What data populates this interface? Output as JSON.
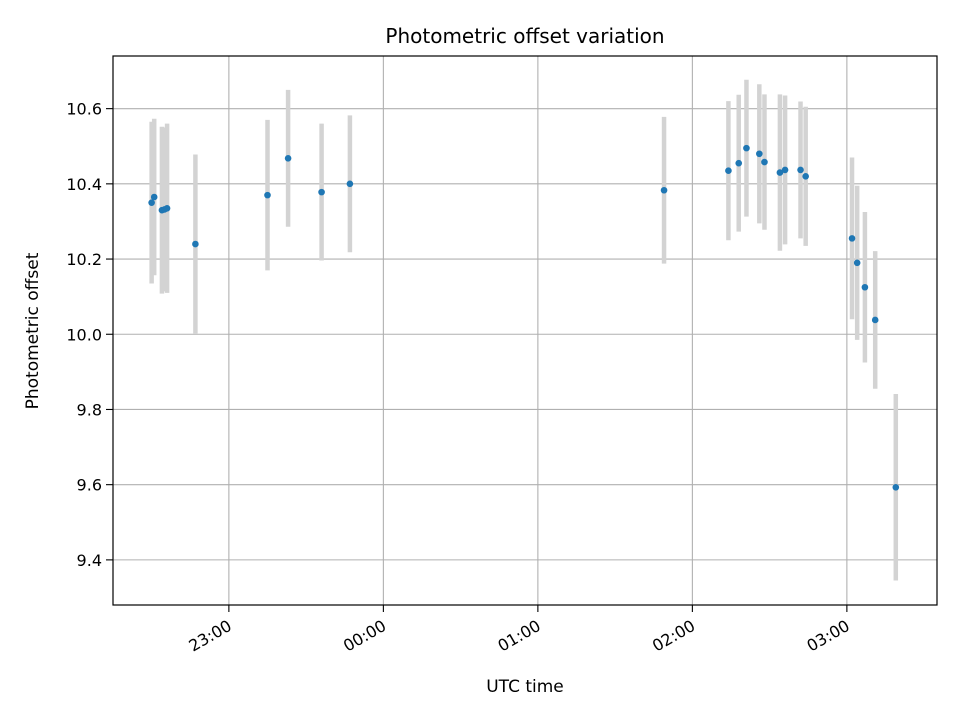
{
  "chart_data": {
    "type": "scatter",
    "title": "Photometric offset variation",
    "xlabel": "UTC time",
    "ylabel": "Photometric offset",
    "grid": true,
    "x_unit": "UTC time (HH:MM)",
    "xlim": [
      "22:15",
      "03:35"
    ],
    "ylim": [
      9.28,
      10.74
    ],
    "x_ticks": [
      "23:00",
      "00:00",
      "01:00",
      "02:00",
      "03:00"
    ],
    "y_ticks": [
      "9.4",
      "9.6",
      "9.8",
      "10.0",
      "10.2",
      "10.4",
      "10.6"
    ],
    "colors": {
      "point": "#1f77b4",
      "errorbar": "#d3d3d3",
      "grid": "#b0b0b0"
    },
    "points": [
      {
        "x": "22:30",
        "y": 10.35,
        "err": 0.215
      },
      {
        "x": "22:31",
        "y": 10.365,
        "err": 0.208
      },
      {
        "x": "22:34",
        "y": 10.33,
        "err": 0.222
      },
      {
        "x": "22:35",
        "y": 10.332,
        "err": 0.218
      },
      {
        "x": "22:36",
        "y": 10.335,
        "err": 0.225
      },
      {
        "x": "22:47",
        "y": 10.24,
        "err": 0.238
      },
      {
        "x": "23:15",
        "y": 10.37,
        "err": 0.2
      },
      {
        "x": "23:23",
        "y": 10.468,
        "err": 0.182
      },
      {
        "x": "23:36",
        "y": 10.378,
        "err": 0.182
      },
      {
        "x": "23:47",
        "y": 10.4,
        "err": 0.182
      },
      {
        "x": "01:49",
        "y": 10.383,
        "err": 0.195
      },
      {
        "x": "02:14",
        "y": 10.435,
        "err": 0.185
      },
      {
        "x": "02:18",
        "y": 10.455,
        "err": 0.182
      },
      {
        "x": "02:21",
        "y": 10.495,
        "err": 0.182
      },
      {
        "x": "02:26",
        "y": 10.48,
        "err": 0.185
      },
      {
        "x": "02:28",
        "y": 10.458,
        "err": 0.18
      },
      {
        "x": "02:34",
        "y": 10.43,
        "err": 0.208
      },
      {
        "x": "02:36",
        "y": 10.437,
        "err": 0.198
      },
      {
        "x": "02:42",
        "y": 10.437,
        "err": 0.182
      },
      {
        "x": "02:44",
        "y": 10.42,
        "err": 0.185
      },
      {
        "x": "03:02",
        "y": 10.255,
        "err": 0.215
      },
      {
        "x": "03:04",
        "y": 10.19,
        "err": 0.205
      },
      {
        "x": "03:07",
        "y": 10.125,
        "err": 0.2
      },
      {
        "x": "03:11",
        "y": 10.038,
        "err": 0.183
      },
      {
        "x": "03:19",
        "y": 9.593,
        "err": 0.248
      }
    ]
  }
}
